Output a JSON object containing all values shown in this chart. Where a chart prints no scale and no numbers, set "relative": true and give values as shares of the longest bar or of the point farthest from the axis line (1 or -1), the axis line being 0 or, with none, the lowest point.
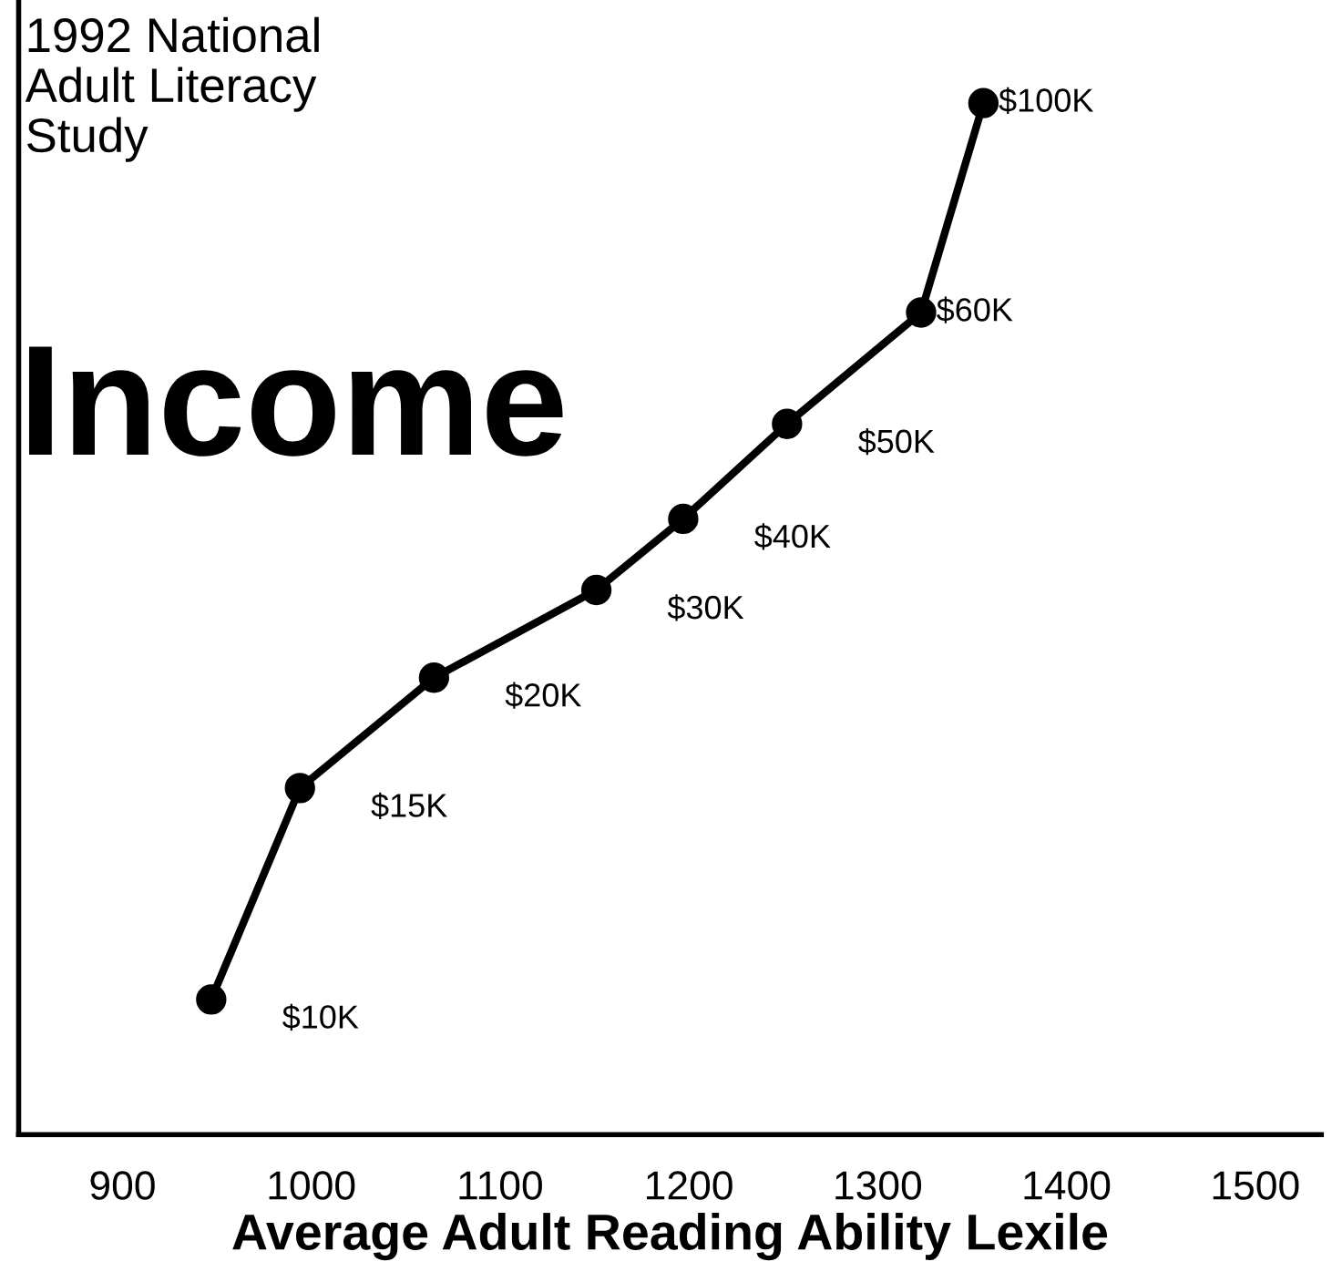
{
  "chart_data": {
    "type": "line",
    "title": "1992 National\nAdult Literacy\nStudy",
    "ylabel": "Income",
    "xlabel": "Average Adult Reading Ability Lexile",
    "x": [
      947,
      994,
      1065,
      1151,
      1197,
      1252,
      1323,
      1356
    ],
    "values": [
      0.131,
      0.336,
      0.443,
      0.528,
      0.597,
      0.689,
      0.797,
      1
    ],
    "annotations": [
      {
        "text": "$10K",
        "x": 947,
        "y": 0.131
      },
      {
        "text": "$15K",
        "x": 994,
        "y": 0.336
      },
      {
        "text": "$20K",
        "x": 1065,
        "y": 0.443
      },
      {
        "text": "$30K",
        "x": 1151,
        "y": 0.528
      },
      {
        "text": "$40K",
        "x": 1197,
        "y": 0.597
      },
      {
        "text": "$50K",
        "x": 1252,
        "y": 0.689
      },
      {
        "text": "$60K",
        "x": 1323,
        "y": 0.797
      },
      {
        "text": "$100K",
        "x": 1356,
        "y": 1
      }
    ],
    "relative": true,
    "color": "#000000",
    "marker": "circle",
    "line_style": "solid",
    "xlim": [
      845,
      1535
    ],
    "xticks": [
      900,
      1000,
      1100,
      1200,
      1300,
      1400,
      1500
    ],
    "grid": false,
    "legend": false
  }
}
